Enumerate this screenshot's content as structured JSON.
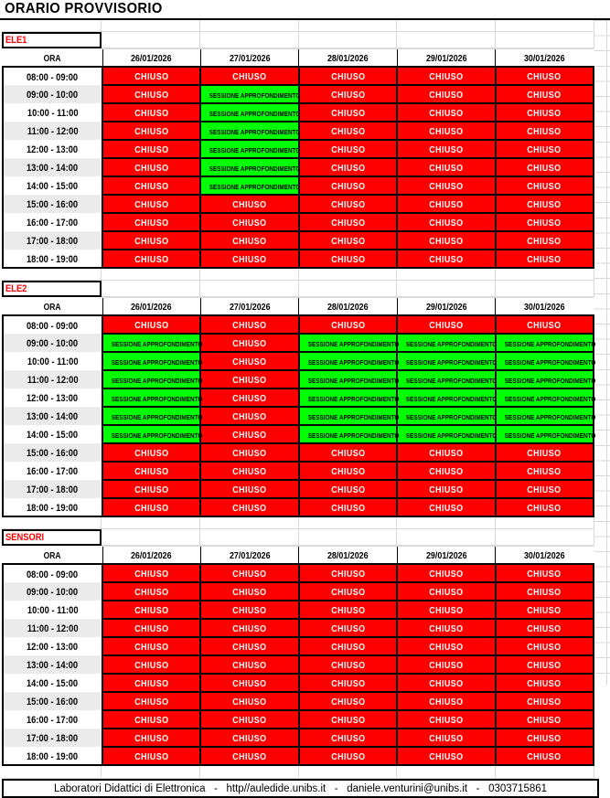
{
  "title": "ORARIO PROVVISORIO",
  "legend": {
    "C": {
      "label": "CHIUSO",
      "bg": "#ff0000",
      "fg": "#ffffff"
    },
    "S": {
      "label": "SESSIONE APPROFONDIMENTO",
      "bg": "#00ff00",
      "fg": "#000000"
    }
  },
  "colors": {
    "closed_red": "#ff0000",
    "session_green": "#00ff00",
    "section_label_red": "#ff0000",
    "gridline_gray": "#d9d9d9",
    "alt_row_gray": "#ebebeb"
  },
  "sections": [
    {
      "label": "ELE1",
      "time_header": "ORA",
      "dates": [
        "26/01/2026",
        "27/01/2026",
        "28/01/2026",
        "29/01/2026",
        "30/01/2026"
      ],
      "rows": [
        {
          "time": "08:00 - 09:00",
          "cells": [
            "C",
            "C",
            "C",
            "C",
            "C"
          ]
        },
        {
          "time": "09:00 - 10:00",
          "cells": [
            "C",
            "S",
            "C",
            "C",
            "C"
          ]
        },
        {
          "time": "10:00 - 11:00",
          "cells": [
            "C",
            "S",
            "C",
            "C",
            "C"
          ]
        },
        {
          "time": "11:00 - 12:00",
          "cells": [
            "C",
            "S",
            "C",
            "C",
            "C"
          ]
        },
        {
          "time": "12:00 - 13:00",
          "cells": [
            "C",
            "S",
            "C",
            "C",
            "C"
          ]
        },
        {
          "time": "13:00 - 14:00",
          "cells": [
            "C",
            "S",
            "C",
            "C",
            "C"
          ]
        },
        {
          "time": "14:00 - 15:00",
          "cells": [
            "C",
            "S",
            "C",
            "C",
            "C"
          ]
        },
        {
          "time": "15:00 - 16:00",
          "cells": [
            "C",
            "C",
            "C",
            "C",
            "C"
          ]
        },
        {
          "time": "16:00 - 17:00",
          "cells": [
            "C",
            "C",
            "C",
            "C",
            "C"
          ]
        },
        {
          "time": "17:00 - 18:00",
          "cells": [
            "C",
            "C",
            "C",
            "C",
            "C"
          ]
        },
        {
          "time": "18:00 - 19:00",
          "cells": [
            "C",
            "C",
            "C",
            "C",
            "C"
          ]
        }
      ]
    },
    {
      "label": "ELE2",
      "time_header": "ORA",
      "dates": [
        "26/01/2026",
        "27/01/2026",
        "28/01/2026",
        "29/01/2026",
        "30/01/2026"
      ],
      "rows": [
        {
          "time": "08:00 - 09:00",
          "cells": [
            "C",
            "C",
            "C",
            "C",
            "C"
          ]
        },
        {
          "time": "09:00 - 10:00",
          "cells": [
            "S",
            "C",
            "S",
            "S",
            "S"
          ]
        },
        {
          "time": "10:00 - 11:00",
          "cells": [
            "S",
            "C",
            "S",
            "S",
            "S"
          ]
        },
        {
          "time": "11:00 - 12:00",
          "cells": [
            "S",
            "C",
            "S",
            "S",
            "S"
          ]
        },
        {
          "time": "12:00 - 13:00",
          "cells": [
            "S",
            "C",
            "S",
            "S",
            "S"
          ]
        },
        {
          "time": "13:00 - 14:00",
          "cells": [
            "S",
            "C",
            "S",
            "S",
            "S"
          ]
        },
        {
          "time": "14:00 - 15:00",
          "cells": [
            "S",
            "C",
            "S",
            "S",
            "S"
          ]
        },
        {
          "time": "15:00 - 16:00",
          "cells": [
            "C",
            "C",
            "C",
            "C",
            "C"
          ]
        },
        {
          "time": "16:00 - 17:00",
          "cells": [
            "C",
            "C",
            "C",
            "C",
            "C"
          ]
        },
        {
          "time": "17:00 - 18:00",
          "cells": [
            "C",
            "C",
            "C",
            "C",
            "C"
          ]
        },
        {
          "time": "18:00 - 19:00",
          "cells": [
            "C",
            "C",
            "C",
            "C",
            "C"
          ]
        }
      ]
    },
    {
      "label": "SENSORI",
      "time_header": "ORA",
      "dates": [
        "26/01/2026",
        "27/01/2026",
        "28/01/2026",
        "29/01/2026",
        "30/01/2026"
      ],
      "rows": [
        {
          "time": "08:00 - 09:00",
          "cells": [
            "C",
            "C",
            "C",
            "C",
            "C"
          ]
        },
        {
          "time": "09:00 - 10:00",
          "cells": [
            "C",
            "C",
            "C",
            "C",
            "C"
          ]
        },
        {
          "time": "10:00 - 11:00",
          "cells": [
            "C",
            "C",
            "C",
            "C",
            "C"
          ]
        },
        {
          "time": "11:00 - 12:00",
          "cells": [
            "C",
            "C",
            "C",
            "C",
            "C"
          ]
        },
        {
          "time": "12:00 - 13:00",
          "cells": [
            "C",
            "C",
            "C",
            "C",
            "C"
          ]
        },
        {
          "time": "13:00 - 14:00",
          "cells": [
            "C",
            "C",
            "C",
            "C",
            "C"
          ]
        },
        {
          "time": "14:00 - 15:00",
          "cells": [
            "C",
            "C",
            "C",
            "C",
            "C"
          ]
        },
        {
          "time": "15:00 - 16:00",
          "cells": [
            "C",
            "C",
            "C",
            "C",
            "C"
          ]
        },
        {
          "time": "16:00 - 17:00",
          "cells": [
            "C",
            "C",
            "C",
            "C",
            "C"
          ]
        },
        {
          "time": "17:00 - 18:00",
          "cells": [
            "C",
            "C",
            "C",
            "C",
            "C"
          ]
        },
        {
          "time": "18:00 - 19:00",
          "cells": [
            "C",
            "C",
            "C",
            "C",
            "C"
          ]
        }
      ]
    }
  ],
  "footer_text": "Laboratori Didattici di Elettronica   -   http//auledide.unibs.it   -   daniele.venturini@unibs.it   -   0303715861"
}
